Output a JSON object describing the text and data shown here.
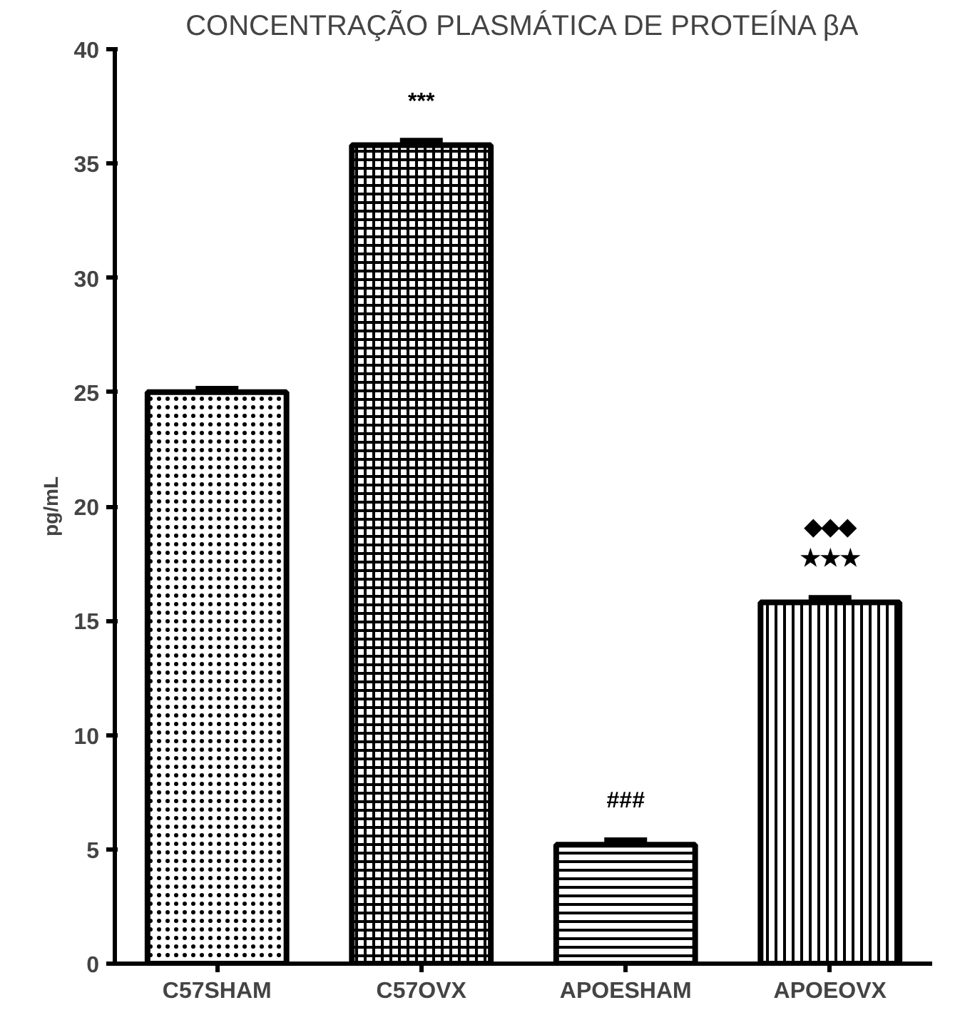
{
  "chart_data": {
    "type": "bar",
    "title": "CONCENTRAÇÃO PLASMÁTICA DE PROTEÍNA βA",
    "ylabel": "pg/mL",
    "categories": [
      "C57SHAM",
      "C57OVX",
      "APOESHAM",
      "APOEOVX"
    ],
    "values": [
      25.0,
      35.8,
      5.2,
      15.8
    ],
    "errors": [
      0.15,
      0.2,
      0.2,
      0.2
    ],
    "colors": [
      "#000000",
      "#000000",
      "#000000",
      "#000000"
    ],
    "ylim": [
      0,
      40
    ],
    "yticks": [
      0,
      5,
      10,
      15,
      20,
      25,
      30,
      35,
      40
    ],
    "grid": false,
    "annotations": [
      "***",
      "###",
      "★★★",
      "◆◆◆"
    ]
  }
}
